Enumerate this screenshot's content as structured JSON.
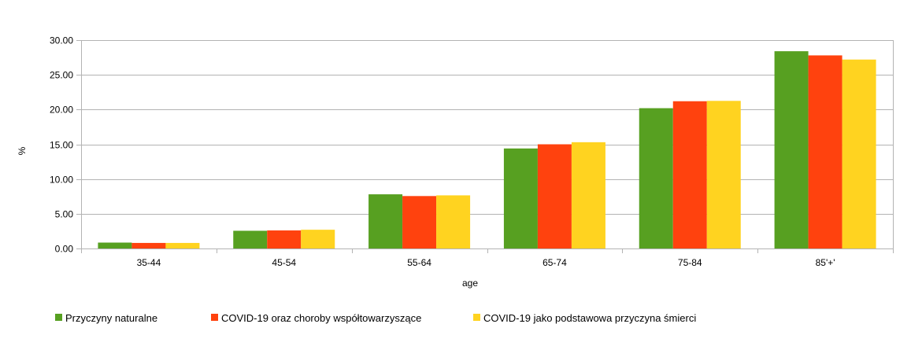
{
  "chart_data": {
    "type": "bar",
    "title": "",
    "xlabel": "age",
    "ylabel": "%",
    "ylim": [
      0,
      30
    ],
    "yticks": [
      "0.00",
      "5.00",
      "10.00",
      "15.00",
      "20.00",
      "25.00",
      "30.00"
    ],
    "grid": true,
    "legend_position": "bottom",
    "categories": [
      "35-44",
      "45-54",
      "55-64",
      "65-74",
      "75-84",
      "85'+'"
    ],
    "series": [
      {
        "name": "Przyczyny naturalne",
        "color": "#57a021",
        "values": [
          0.85,
          2.55,
          7.8,
          14.4,
          20.2,
          28.4
        ]
      },
      {
        "name": "COVID-19 oraz choroby współtowarzyszące",
        "color": "#ff420e",
        "values": [
          0.8,
          2.6,
          7.55,
          15.0,
          21.2,
          27.8
        ]
      },
      {
        "name": "COVID-19 jako podstawowa przyczyna śmierci",
        "color": "#ffd320",
        "values": [
          0.8,
          2.7,
          7.65,
          15.3,
          21.25,
          27.2
        ]
      }
    ]
  }
}
